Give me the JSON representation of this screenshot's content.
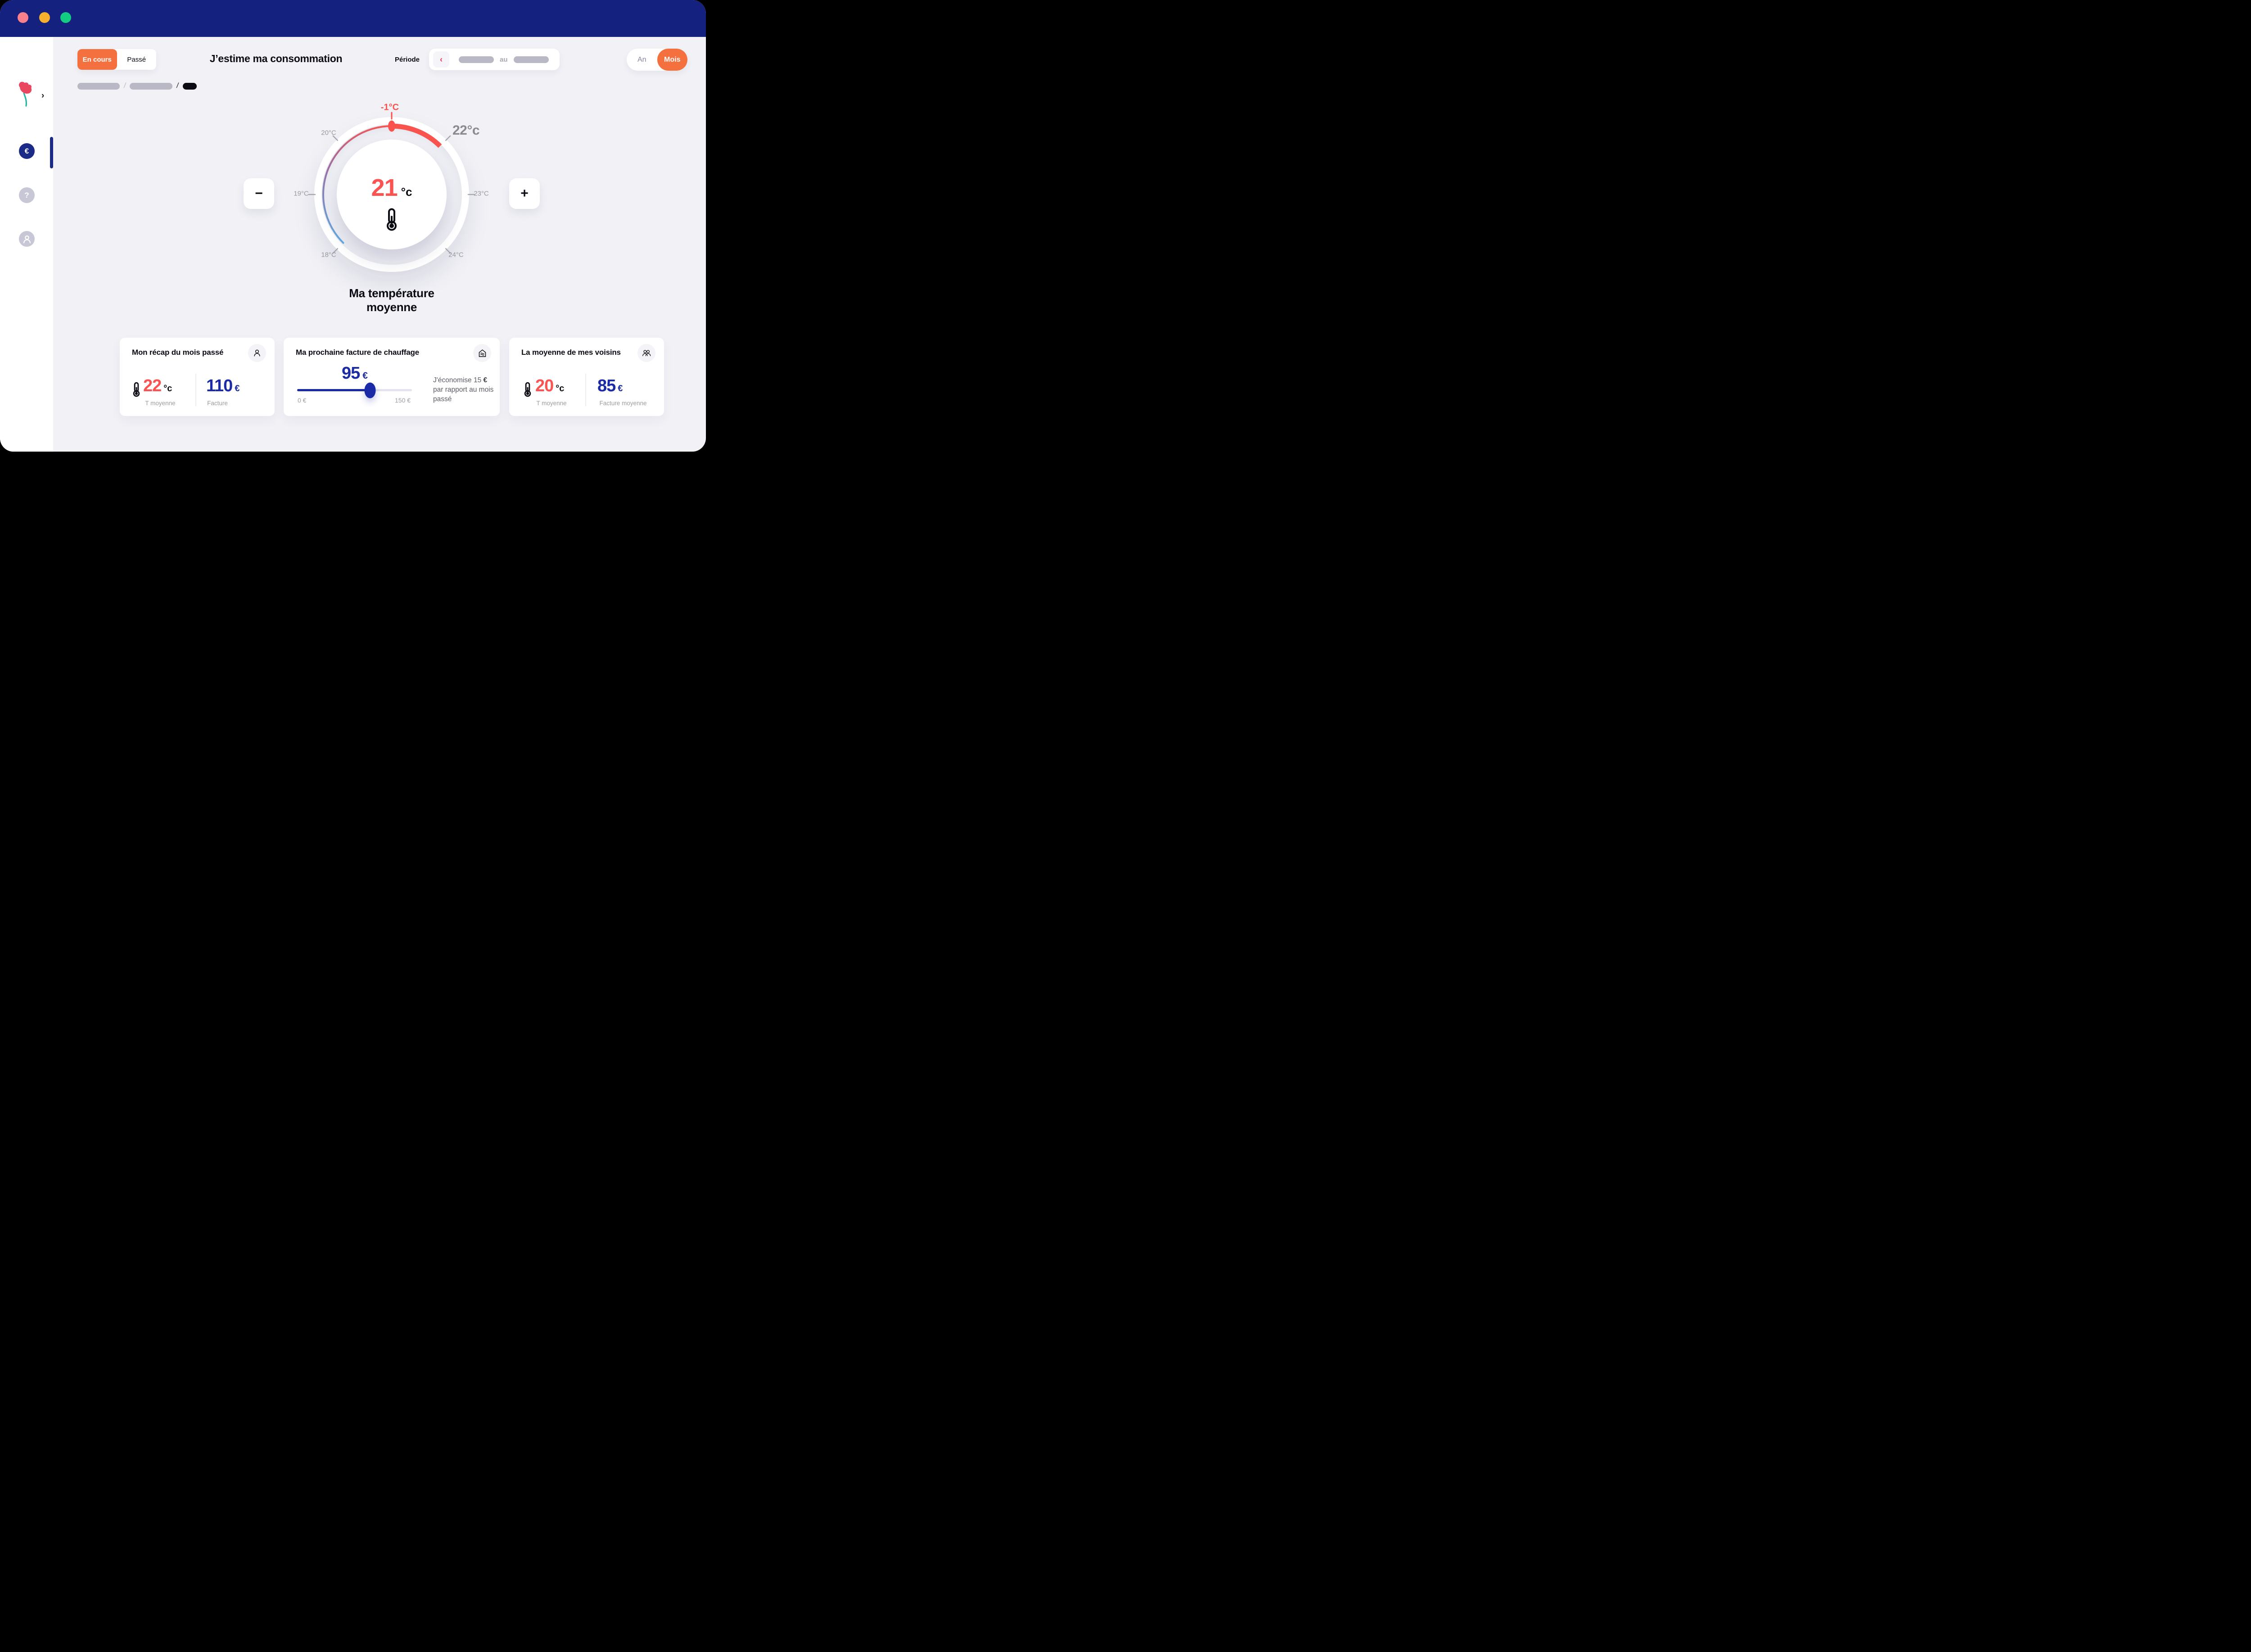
{
  "header": {
    "tab_current": "En cours",
    "tab_past": "Passé",
    "title": "J’estime ma consommation",
    "period_label": "Période",
    "period_back_chevron": "‹",
    "period_separator": "au",
    "toggle_year": "An",
    "toggle_month": "Mois"
  },
  "sidebar": {
    "expand_chevron": "›",
    "euro_symbol": "€",
    "help_symbol": "?"
  },
  "dial": {
    "value": "21",
    "unit": "°c",
    "delta_badge": "-1°C",
    "selected_tick": "22°c",
    "tick_18": "18°C",
    "tick_19": "19°C",
    "tick_20": "20°C",
    "tick_23": "23°C",
    "tick_24": "24°C",
    "decrease_label": "−",
    "increase_label": "+",
    "caption": "Ma température moyenne"
  },
  "cards": {
    "recap": {
      "title": "Mon récap du mois passé",
      "temp": "22",
      "temp_unit": "°c",
      "temp_label": "T moyenne",
      "amount": "110",
      "currency": "€",
      "amount_label": "Facture"
    },
    "next_bill": {
      "title": "Ma prochaine facture de chauffage",
      "amount": "95",
      "currency": "€",
      "slider_value": 95,
      "slider_min": 0,
      "slider_max": 150,
      "range_min": "0 €",
      "range_max": "150 €",
      "note_text": "J'économise 15 ",
      "note_currency": "€",
      "note_rest": " par rapport au mois passé"
    },
    "neighbors": {
      "title": "La moyenne de mes voisins",
      "temp": "20",
      "temp_unit": "°c",
      "temp_label": "T moyenne",
      "amount": "85",
      "currency": "€",
      "amount_label": "Facture moyenne"
    }
  },
  "colors": {
    "accent_orange": "#F4703F",
    "accent_red": "#F9534E",
    "accent_blue": "#1B2BA6",
    "navy_topbar": "#15217E"
  }
}
